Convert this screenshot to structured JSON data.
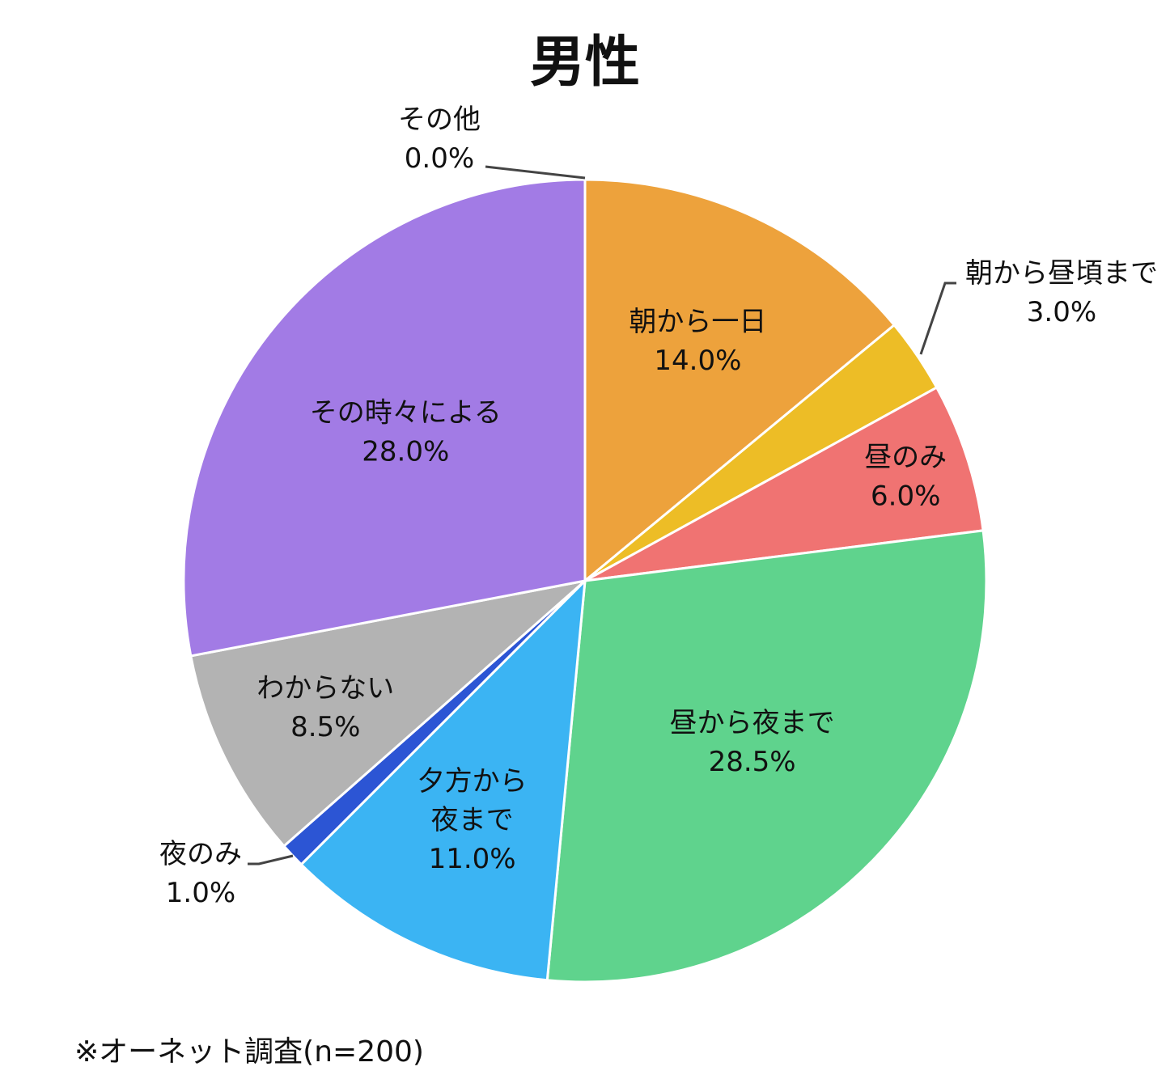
{
  "chart_data": {
    "type": "pie",
    "title": "男性",
    "start_angle": "12 o'clock, clockwise",
    "slices": [
      {
        "label": "朝から一日",
        "value": 14.0,
        "display": "14.0%",
        "color": "#EDA23C"
      },
      {
        "label": "朝から昼頃まで",
        "value": 3.0,
        "display": "3.0%",
        "color": "#EDBD26"
      },
      {
        "label": "昼のみ",
        "value": 6.0,
        "display": "6.0%",
        "color": "#F07372"
      },
      {
        "label": "昼から夜まで",
        "value": 28.5,
        "display": "28.5%",
        "color": "#5FD38D"
      },
      {
        "label": "夕方から夜まで",
        "label_lines": [
          "夕方から",
          "夜まで"
        ],
        "value": 11.0,
        "display": "11.0%",
        "color": "#3BB4F3"
      },
      {
        "label": "夜のみ",
        "value": 1.0,
        "display": "1.0%",
        "color": "#2C55D4"
      },
      {
        "label": "わからない",
        "value": 8.5,
        "display": "8.5%",
        "color": "#B3B3B3"
      },
      {
        "label": "その時々による",
        "value": 28.0,
        "display": "28.0%",
        "color": "#A27BE5"
      },
      {
        "label": "その他",
        "value": 0.0,
        "display": "0.0%",
        "color": "#A27BE5"
      }
    ]
  },
  "footnote": "※オーネット調査(n=200)"
}
